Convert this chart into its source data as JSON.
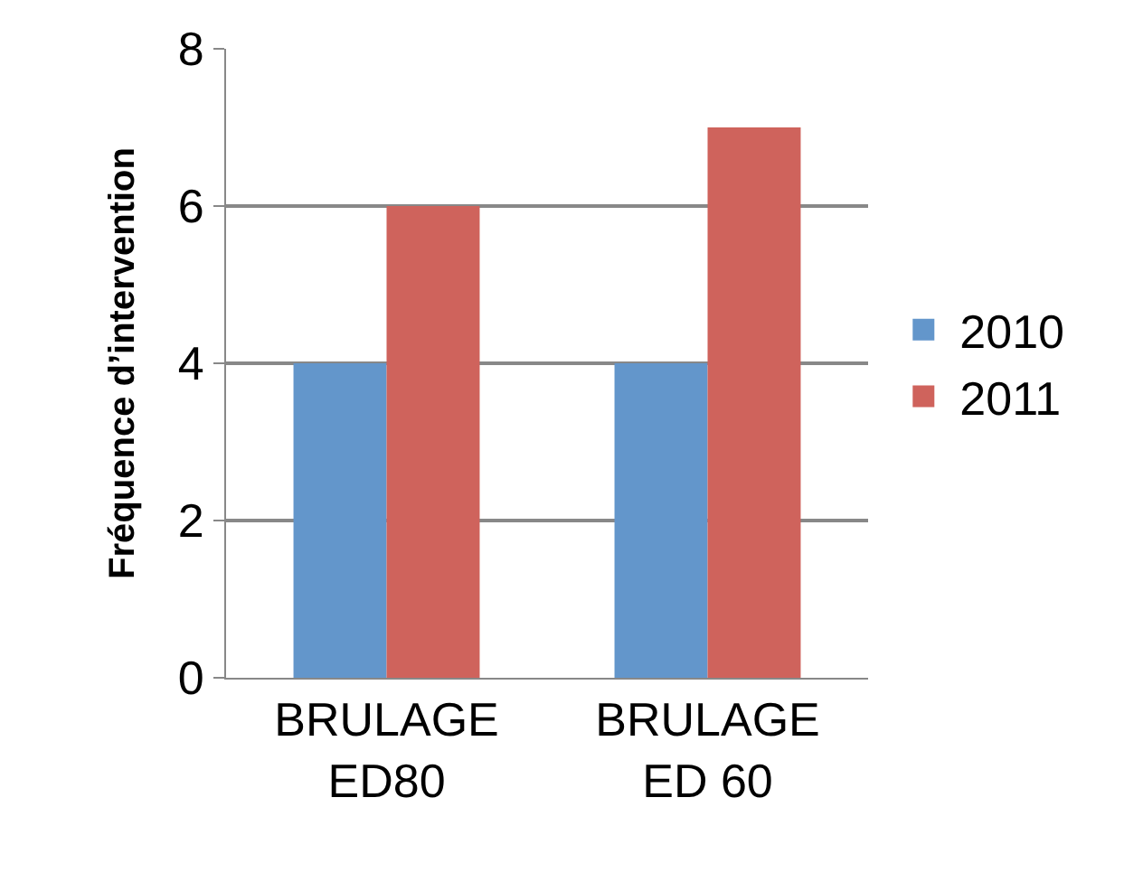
{
  "chart_data": {
    "type": "bar",
    "ylabel": "Fréquence d’intervention",
    "categories": [
      "BRULAGE\nED80",
      "BRULAGE\nED 60"
    ],
    "series": [
      {
        "name": "2010",
        "color": "#6396cb",
        "values": [
          4,
          4
        ]
      },
      {
        "name": "2011",
        "color": "#cf635c",
        "values": [
          6,
          7
        ]
      }
    ],
    "ylim": [
      0,
      8
    ],
    "yticks": [
      0,
      2,
      4,
      6,
      8
    ],
    "grid": "y",
    "legend": "right"
  }
}
